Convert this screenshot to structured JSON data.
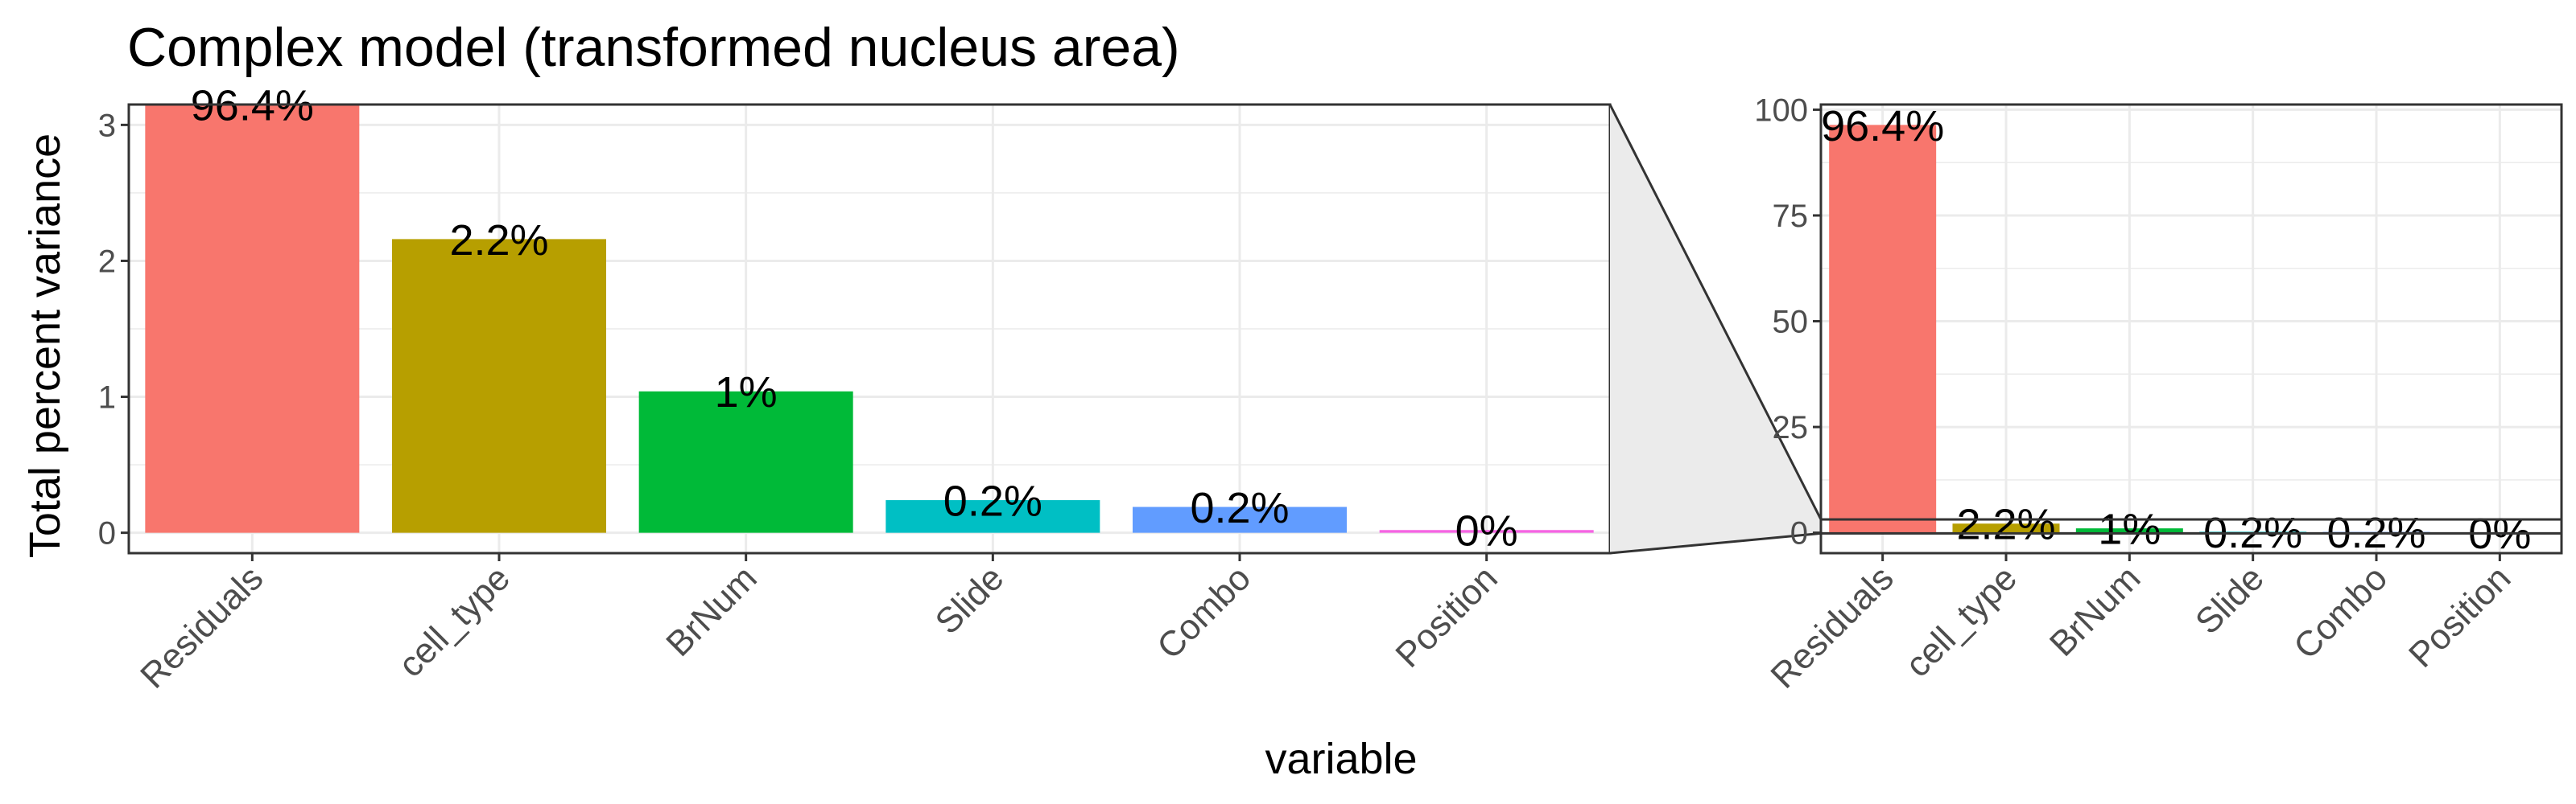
{
  "title": "Complex model (transformed nucleus area)",
  "xlabel": "variable",
  "ylabel": "Total percent variance",
  "chart_data": [
    {
      "type": "bar",
      "panel": "zoomed",
      "categories": [
        "Residuals",
        "cell_type",
        "BrNum",
        "Slide",
        "Combo",
        "Position"
      ],
      "values": [
        96.4,
        2.16,
        1.04,
        0.24,
        0.19,
        0.02
      ],
      "data_labels": [
        "96.4%",
        "2.2%",
        "1%",
        "0.2%",
        "0.2%",
        "0%"
      ],
      "colors": [
        "#F8766D",
        "#B79F00",
        "#00BA38",
        "#00BFC4",
        "#619CFF",
        "#F564E3"
      ],
      "ylim": [
        -0.15,
        3.15
      ],
      "yticks": [
        "0",
        "1",
        "2",
        "3"
      ],
      "grid": true
    },
    {
      "type": "bar",
      "panel": "full",
      "categories": [
        "Residuals",
        "cell_type",
        "BrNum",
        "Slide",
        "Combo",
        "Position"
      ],
      "values": [
        96.4,
        2.16,
        1.04,
        0.24,
        0.19,
        0.02
      ],
      "data_labels": [
        "96.4%",
        "2.2%",
        "1%",
        "0.2%",
        "0.2%",
        "0%"
      ],
      "colors": [
        "#F8766D",
        "#B79F00",
        "#00BA38",
        "#00BFC4",
        "#619CFF",
        "#F564E3"
      ],
      "ylim": [
        -4.82,
        101.22
      ],
      "yticks": [
        "0",
        "25",
        "50",
        "75",
        "100"
      ],
      "zoom_window": [
        -0.15,
        3.15
      ],
      "grid": true
    }
  ],
  "colors": {
    "axis": "#333333",
    "grid": "#ebebeb",
    "connector_fill": "#ebebeb",
    "connector_stroke": "#333333"
  }
}
